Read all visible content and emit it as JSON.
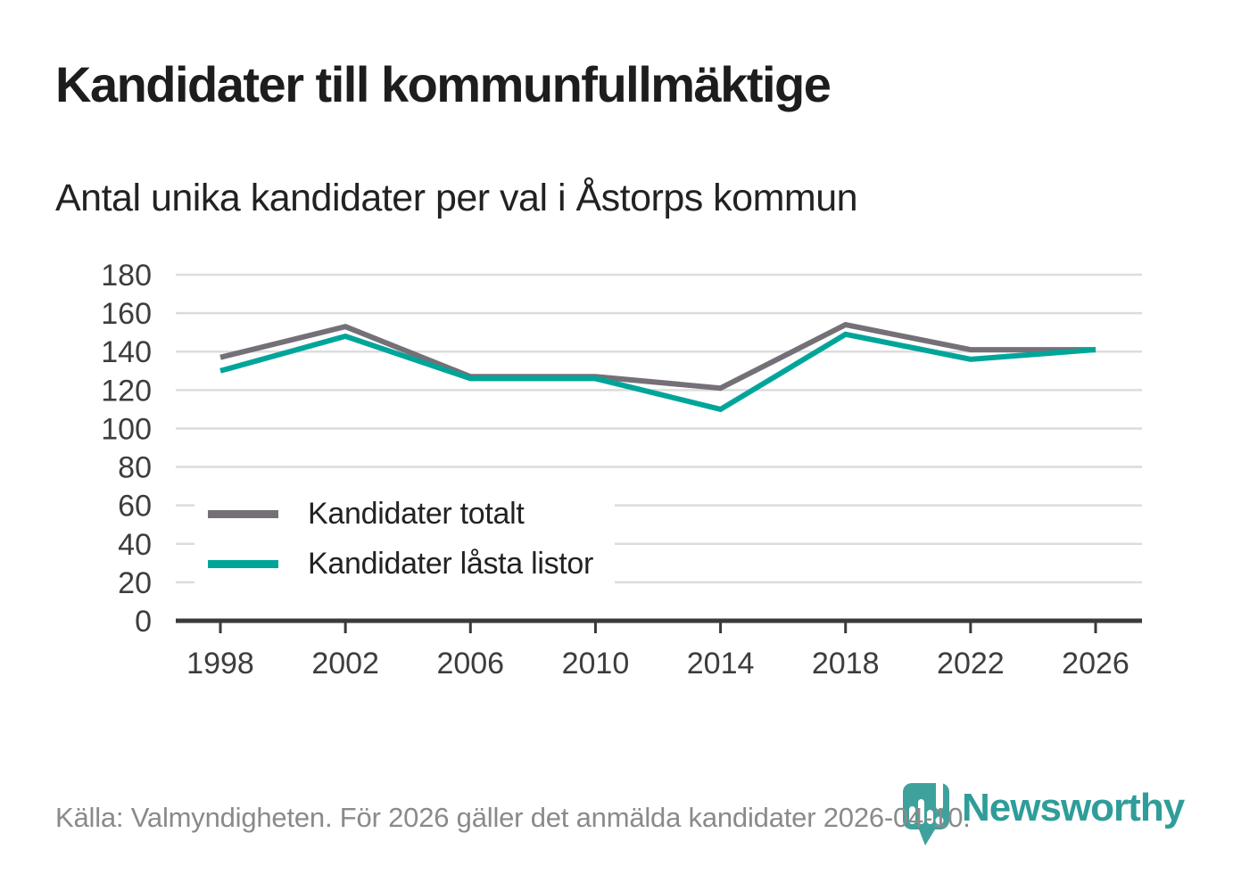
{
  "header": {
    "title": "Kandidater till kommunfullmäktige",
    "subtitle": "Antal unika kandidater per val i Åstorps kommun"
  },
  "chart_data": {
    "type": "line",
    "x": [
      1998,
      2002,
      2006,
      2010,
      2014,
      2018,
      2022,
      2026
    ],
    "series": [
      {
        "name": "Kandidater totalt",
        "color": "#757078",
        "values": [
          137,
          153,
          127,
          127,
          121,
          154,
          141,
          141
        ]
      },
      {
        "name": "Kandidater låsta listor",
        "color": "#00a59a",
        "values": [
          130,
          148,
          126,
          126,
          110,
          149,
          136,
          141
        ]
      }
    ],
    "title": "Kandidater till kommunfullmäktige",
    "subtitle": "Antal unika kandidater per val i Åstorps kommun",
    "xlabel": "",
    "ylabel": "",
    "ylim": [
      0,
      180
    ],
    "ytick_step": 20,
    "yticks": [
      0,
      20,
      40,
      60,
      80,
      100,
      120,
      140,
      160,
      180
    ],
    "grid": true,
    "legend_position": "inside-lower-left",
    "line_width": 6
  },
  "styles": {
    "grid_color": "#dcdcdc",
    "axis_color": "#3a3a3a",
    "tick_label_color": "#3d3d3d"
  },
  "footer": {
    "source": "Källa: Valmyndigheten. För 2026 gäller det anmälda kandidater 2026-04-10."
  },
  "branding": {
    "logo_text": "Newsworthy",
    "logo_text_color": "#2f9d99",
    "logo_icon": "speech-bubble-bar-chart-icon",
    "logo_icon_color": "#3fa19b"
  }
}
